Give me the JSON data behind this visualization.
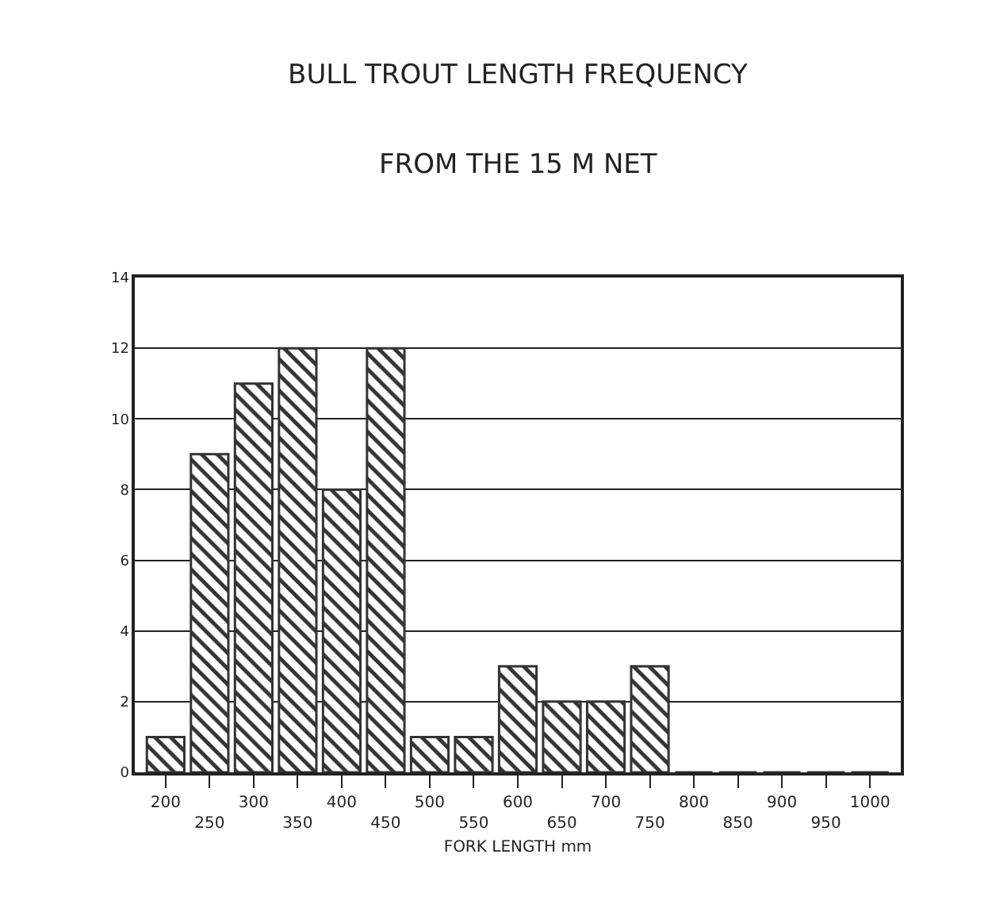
{
  "chart_data": {
    "type": "bar",
    "title": "BULL TROUT LENGTH FREQUENCY",
    "subtitle": "FROM THE 15 M NET",
    "xlabel": "FORK LENGTH mm",
    "categories": [
      "200",
      "250",
      "300",
      "350",
      "400",
      "450",
      "500",
      "550",
      "600",
      "650",
      "700",
      "750",
      "800",
      "850",
      "900",
      "950",
      "1000"
    ],
    "values": [
      1,
      9,
      11,
      12,
      8,
      12,
      1,
      1,
      3,
      2,
      2,
      3,
      0,
      0,
      0,
      0,
      0
    ],
    "color": "#333333",
    "ylim": [
      0,
      14
    ],
    "yticks": [
      0,
      2,
      4,
      6,
      8,
      10,
      12,
      14
    ],
    "grid": "y",
    "legend": false
  }
}
